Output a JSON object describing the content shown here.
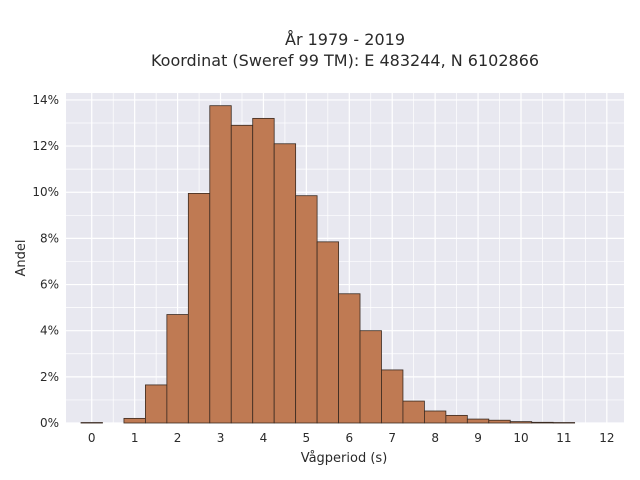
{
  "chart_data": {
    "type": "bar",
    "title_line1": "År 1979 - 2019",
    "title_line2": "Koordinat (Sweref 99 TM): E 483244, N 6102866",
    "xlabel": "Vågperiod (s)",
    "ylabel": "Andel",
    "xlim": [
      -0.6,
      12.4
    ],
    "ylim": [
      0,
      14.3
    ],
    "xticks": [
      0,
      1,
      2,
      3,
      4,
      5,
      6,
      7,
      8,
      9,
      10,
      11,
      12
    ],
    "yticks": [
      0,
      2,
      4,
      6,
      8,
      10,
      12,
      14
    ],
    "ytick_labels": [
      "0%",
      "2%",
      "4%",
      "6%",
      "8%",
      "10%",
      "12%",
      "14%"
    ],
    "grid": true,
    "bar_width": 0.5,
    "bar_color": "#bf7a53",
    "bar_edge_color": "#3a2a20",
    "plot_background": "#e8e8f0",
    "bars": [
      {
        "x": 0.0,
        "value": 0.02
      },
      {
        "x": 1.0,
        "value": 0.2
      },
      {
        "x": 1.5,
        "value": 1.65
      },
      {
        "x": 2.0,
        "value": 4.7
      },
      {
        "x": 2.5,
        "value": 9.95
      },
      {
        "x": 3.0,
        "value": 13.75
      },
      {
        "x": 3.5,
        "value": 12.9
      },
      {
        "x": 4.0,
        "value": 13.2
      },
      {
        "x": 4.5,
        "value": 12.1
      },
      {
        "x": 5.0,
        "value": 9.85
      },
      {
        "x": 5.5,
        "value": 7.85
      },
      {
        "x": 6.0,
        "value": 5.6
      },
      {
        "x": 6.5,
        "value": 4.0
      },
      {
        "x": 7.0,
        "value": 2.3
      },
      {
        "x": 7.5,
        "value": 0.95
      },
      {
        "x": 8.0,
        "value": 0.52
      },
      {
        "x": 8.5,
        "value": 0.33
      },
      {
        "x": 9.0,
        "value": 0.17
      },
      {
        "x": 9.5,
        "value": 0.12
      },
      {
        "x": 10.0,
        "value": 0.06
      },
      {
        "x": 10.5,
        "value": 0.03
      },
      {
        "x": 11.0,
        "value": 0.02
      }
    ]
  }
}
